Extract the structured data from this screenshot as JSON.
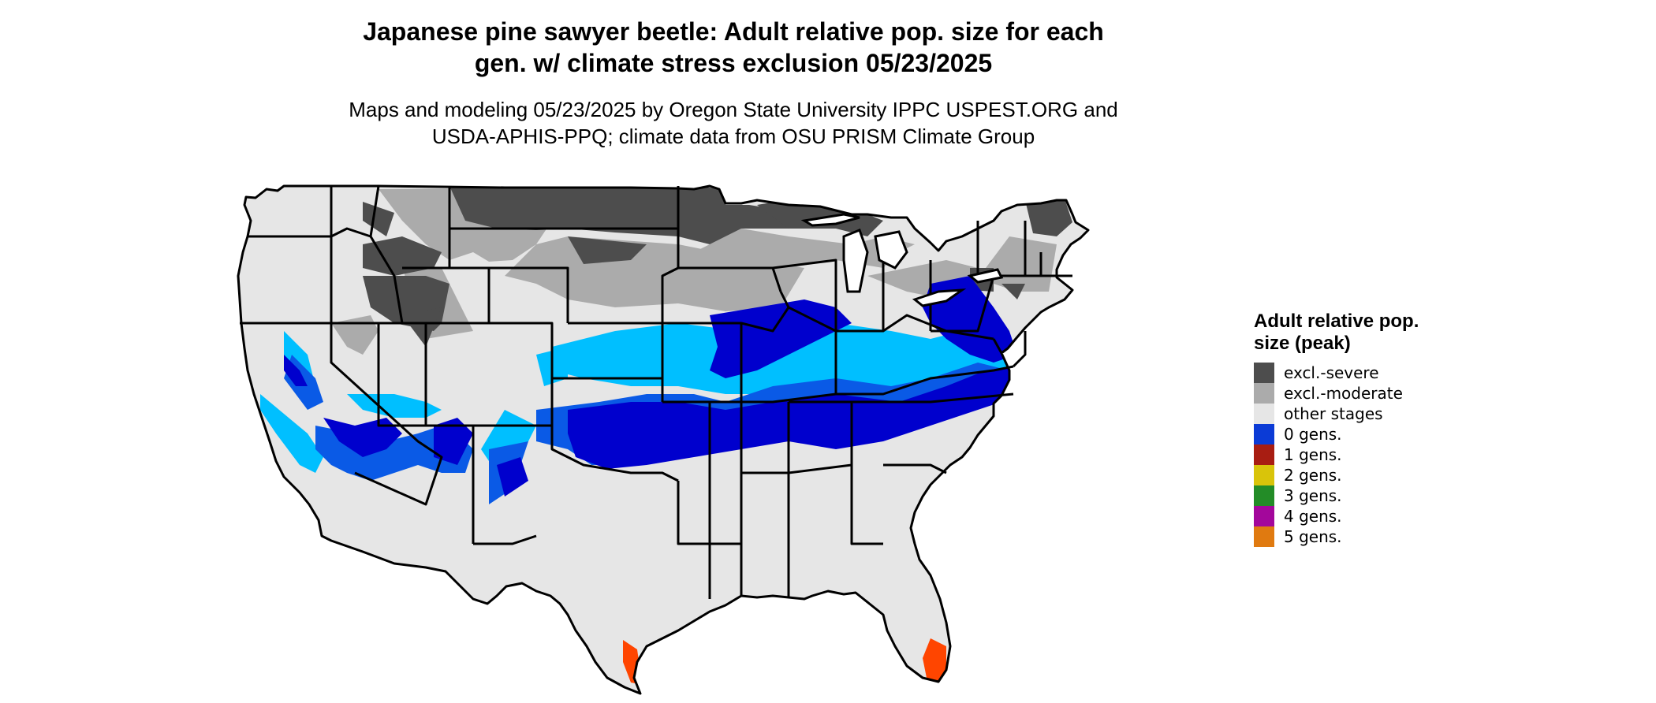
{
  "title": {
    "line1": "Japanese pine sawyer beetle: Adult relative pop. size for each",
    "line2": "gen. w/ climate stress exclusion 05/23/2025"
  },
  "subtitle": {
    "line1": "Maps and modeling 05/23/2025 by Oregon State University IPPC USPEST.ORG and",
    "line2": "USDA-APHIS-PPQ; climate data from OSU PRISM Climate Group"
  },
  "legend": {
    "title": "Adult relative pop. size (peak)",
    "items": [
      {
        "label": "excl.-severe",
        "color": "#4d4d4d"
      },
      {
        "label": "excl.-moderate",
        "color": "#ababab"
      },
      {
        "label": "other stages",
        "color": "#e6e6e6"
      },
      {
        "label": "0 gens.",
        "color": "#0b3bd6"
      },
      {
        "label": "1 gens.",
        "color": "#a81d12"
      },
      {
        "label": "2 gens.",
        "color": "#d9c40a"
      },
      {
        "label": "3 gens.",
        "color": "#238c27"
      },
      {
        "label": "4 gens.",
        "color": "#a3079b"
      },
      {
        "label": "5 gens.",
        "color": "#e07a10"
      }
    ]
  },
  "map": {
    "colors": {
      "background_land": "#e6e6e6",
      "excl_severe": "#4d4d4d",
      "excl_moderate": "#ababab",
      "light_blue": "#00bfff",
      "mid_blue": "#0a5ae6",
      "deep_blue": "#0000cd",
      "orange_red": "#ff4500",
      "border": "#000000"
    }
  }
}
